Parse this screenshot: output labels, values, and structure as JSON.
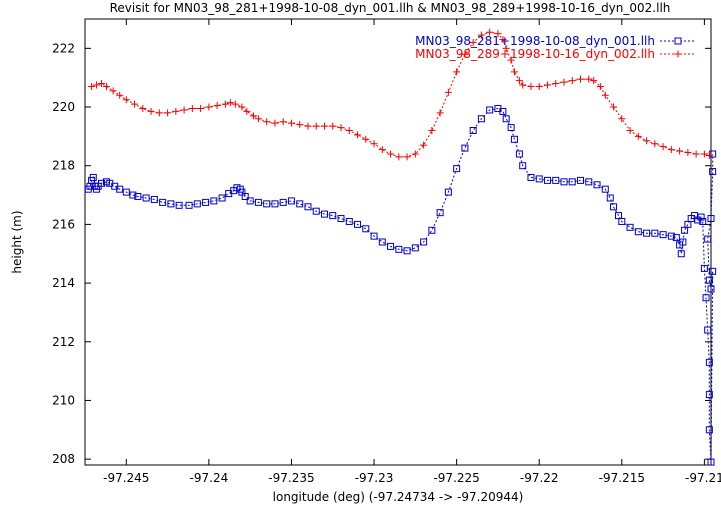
{
  "chart_data": {
    "type": "line",
    "title": "Revisit for MN03_98_281+1998-10-08_dyn_001.llh & MN03_98_289+1998-10-16_dyn_002.llh",
    "xlabel": "longitude (deg) (-97.24734 -> -97.20944)",
    "ylabel": "height (m)",
    "xlim": [
      -97.2475,
      -97.2096
    ],
    "ylim": [
      207.8,
      223
    ],
    "xticks": [
      -97.245,
      -97.24,
      -97.235,
      -97.23,
      -97.225,
      -97.22,
      -97.215,
      -97.21
    ],
    "xtick_labels": [
      "-97.245",
      "-97.24",
      "-97.235",
      "-97.23",
      "-97.225",
      "-97.22",
      "-97.215",
      "-97.21"
    ],
    "yticks": [
      208,
      210,
      212,
      214,
      216,
      218,
      220,
      222
    ],
    "ytick_labels": [
      "208",
      "210",
      "212",
      "214",
      "216",
      "218",
      "220",
      "222"
    ],
    "grid": false,
    "legend_position": "top-right",
    "series": [
      {
        "name": "MN03_98_281+1998-10-08_dyn_001.llh",
        "color": "#0000cc",
        "marker": "square",
        "x": [
          -97.2473,
          -97.2472,
          -97.2471,
          -97.247,
          -97.2469,
          -97.2468,
          -97.2467,
          -97.2465,
          -97.2462,
          -97.246,
          -97.2457,
          -97.2454,
          -97.245,
          -97.2446,
          -97.2443,
          -97.2438,
          -97.2433,
          -97.2428,
          -97.2423,
          -97.2418,
          -97.2412,
          -97.2407,
          -97.2402,
          -97.2397,
          -97.2392,
          -97.2388,
          -97.2385,
          -97.2383,
          -97.2381,
          -97.238,
          -97.2378,
          -97.2375,
          -97.237,
          -97.2365,
          -97.236,
          -97.2355,
          -97.235,
          -97.2345,
          -97.234,
          -97.2335,
          -97.233,
          -97.2325,
          -97.232,
          -97.2315,
          -97.231,
          -97.2305,
          -97.23,
          -97.2295,
          -97.229,
          -97.2285,
          -97.228,
          -97.2275,
          -97.227,
          -97.2265,
          -97.226,
          -97.2255,
          -97.225,
          -97.2245,
          -97.224,
          -97.2235,
          -97.223,
          -97.2225,
          -97.2222,
          -97.222,
          -97.2217,
          -97.2215,
          -97.2212,
          -97.221,
          -97.2205,
          -97.22,
          -97.2195,
          -97.219,
          -97.2185,
          -97.218,
          -97.2175,
          -97.217,
          -97.2165,
          -97.216,
          -97.2157,
          -97.2155,
          -97.2152,
          -97.215,
          -97.2145,
          -97.214,
          -97.2135,
          -97.213,
          -97.2125,
          -97.212,
          -97.2117,
          -97.2115,
          -97.2114,
          -97.2113,
          -97.2112,
          -97.211,
          -97.2108,
          -97.2106,
          -97.2104,
          -97.2102,
          -97.2101,
          -97.21,
          -97.2099,
          -97.2098,
          -97.2097,
          -97.2097,
          -97.2097,
          -97.2096,
          -97.2095,
          -97.2096,
          -97.2097,
          -97.2098,
          -97.2096,
          -97.2095,
          -97.2095
        ],
        "values": [
          217.2,
          217.3,
          217.5,
          217.6,
          217.3,
          217.2,
          217.3,
          217.4,
          217.45,
          217.4,
          217.3,
          217.2,
          217.1,
          217.0,
          216.95,
          216.9,
          216.85,
          216.75,
          216.7,
          216.65,
          216.65,
          216.7,
          216.75,
          216.8,
          216.9,
          217.05,
          217.15,
          217.25,
          217.2,
          217.1,
          216.95,
          216.8,
          216.75,
          216.7,
          216.7,
          216.75,
          216.8,
          216.7,
          216.6,
          216.45,
          216.35,
          216.3,
          216.2,
          216.1,
          216.0,
          215.85,
          215.6,
          215.4,
          215.25,
          215.15,
          215.1,
          215.2,
          215.4,
          215.8,
          216.4,
          217.1,
          217.9,
          218.6,
          219.2,
          219.6,
          219.9,
          219.95,
          219.85,
          219.6,
          219.3,
          218.9,
          218.4,
          218.0,
          217.6,
          217.55,
          217.5,
          217.5,
          217.45,
          217.45,
          217.5,
          217.45,
          217.35,
          217.2,
          216.9,
          216.6,
          216.3,
          216.1,
          215.9,
          215.75,
          215.7,
          215.7,
          215.65,
          215.6,
          215.55,
          215.3,
          215.0,
          215.4,
          215.8,
          216.0,
          216.2,
          216.3,
          216.15,
          216.25,
          216.1,
          214.5,
          213.5,
          212.4,
          211.3,
          210.2,
          209.0,
          207.9,
          214.4,
          213.8,
          214.1,
          215.5,
          216.2,
          217.8,
          218.4
        ]
      },
      {
        "name": "MN03_98_289+1998-10-16_dyn_002.llh",
        "color": "#ff0000",
        "marker": "plus",
        "x": [
          -97.2471,
          -97.2468,
          -97.2465,
          -97.2462,
          -97.2458,
          -97.2454,
          -97.245,
          -97.2445,
          -97.244,
          -97.2435,
          -97.243,
          -97.2425,
          -97.242,
          -97.2415,
          -97.241,
          -97.2405,
          -97.24,
          -97.2395,
          -97.239,
          -97.2387,
          -97.2384,
          -97.238,
          -97.2377,
          -97.2373,
          -97.237,
          -97.2365,
          -97.236,
          -97.2355,
          -97.235,
          -97.2345,
          -97.234,
          -97.2335,
          -97.233,
          -97.2325,
          -97.232,
          -97.2315,
          -97.231,
          -97.2305,
          -97.23,
          -97.2295,
          -97.229,
          -97.2285,
          -97.228,
          -97.2275,
          -97.227,
          -97.2265,
          -97.226,
          -97.2255,
          -97.225,
          -97.2245,
          -97.224,
          -97.2235,
          -97.223,
          -97.2225,
          -97.2222,
          -97.222,
          -97.2217,
          -97.2215,
          -97.2212,
          -97.221,
          -97.2205,
          -97.22,
          -97.2195,
          -97.219,
          -97.2185,
          -97.218,
          -97.2175,
          -97.217,
          -97.2167,
          -97.2163,
          -97.216,
          -97.2155,
          -97.215,
          -97.2145,
          -97.214,
          -97.2135,
          -97.213,
          -97.2125,
          -97.212,
          -97.2115,
          -97.211,
          -97.2105,
          -97.21,
          -97.2097
        ],
        "values": [
          220.7,
          220.75,
          220.8,
          220.7,
          220.55,
          220.4,
          220.25,
          220.1,
          219.95,
          219.85,
          219.8,
          219.8,
          219.85,
          219.9,
          219.95,
          219.95,
          220.0,
          220.05,
          220.1,
          220.15,
          220.1,
          220.0,
          219.85,
          219.7,
          219.6,
          219.5,
          219.45,
          219.5,
          219.45,
          219.4,
          219.35,
          219.35,
          219.35,
          219.35,
          219.3,
          219.2,
          219.05,
          218.9,
          218.75,
          218.55,
          218.4,
          218.3,
          218.3,
          218.4,
          218.7,
          219.2,
          219.8,
          220.5,
          221.2,
          221.8,
          222.2,
          222.45,
          222.55,
          222.5,
          222.3,
          222.0,
          221.6,
          221.2,
          220.9,
          220.75,
          220.7,
          220.7,
          220.75,
          220.8,
          220.85,
          220.9,
          220.95,
          220.95,
          220.9,
          220.7,
          220.4,
          220.0,
          219.6,
          219.2,
          219.0,
          218.85,
          218.75,
          218.65,
          218.55,
          218.5,
          218.45,
          218.4,
          218.4,
          218.35
        ]
      }
    ]
  }
}
